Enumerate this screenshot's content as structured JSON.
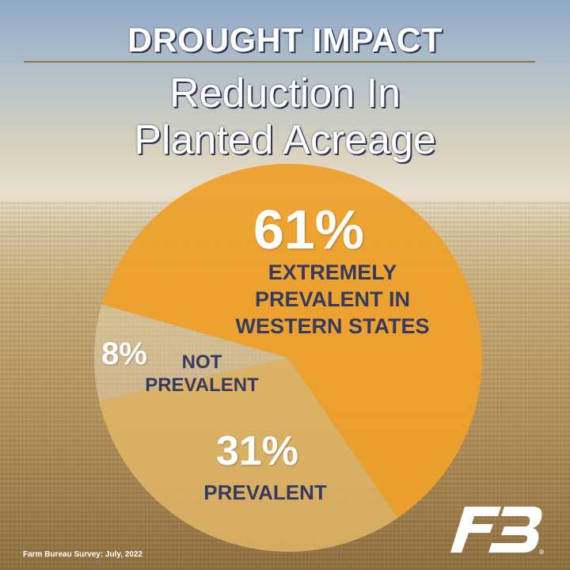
{
  "header": {
    "title": "DROUGHT IMPACT",
    "subtitle_line1": "Reduction In",
    "subtitle_line2": "Planted Acreage"
  },
  "chart_data": {
    "type": "pie",
    "title": "DROUGHT IMPACT",
    "subtitle": "Reduction In Planted Acreage",
    "slices": [
      {
        "percent_text": "61%",
        "value": 61,
        "label_line1": "EXTREMELY",
        "label_line2": "PREVALENT IN",
        "label_line3": "WESTERN STATES",
        "color": "#eea12c"
      },
      {
        "percent_text": "31%",
        "value": 31,
        "label_line1": "PREVALENT",
        "color": "#e3b868"
      },
      {
        "percent_text": "8%",
        "value": 8,
        "label_line1": "NOT",
        "label_line2": "PREVALENT",
        "color": "#e3d4b5"
      }
    ]
  },
  "footer": {
    "source": "Farm Bureau Survey: July, 2022",
    "logo_mark": "FB",
    "registered_mark": "®"
  },
  "colors": {
    "title_text": "#ffffff",
    "title_outline": "#2e3355",
    "category_text": "#363a5e",
    "rule": "#8c7a45"
  }
}
